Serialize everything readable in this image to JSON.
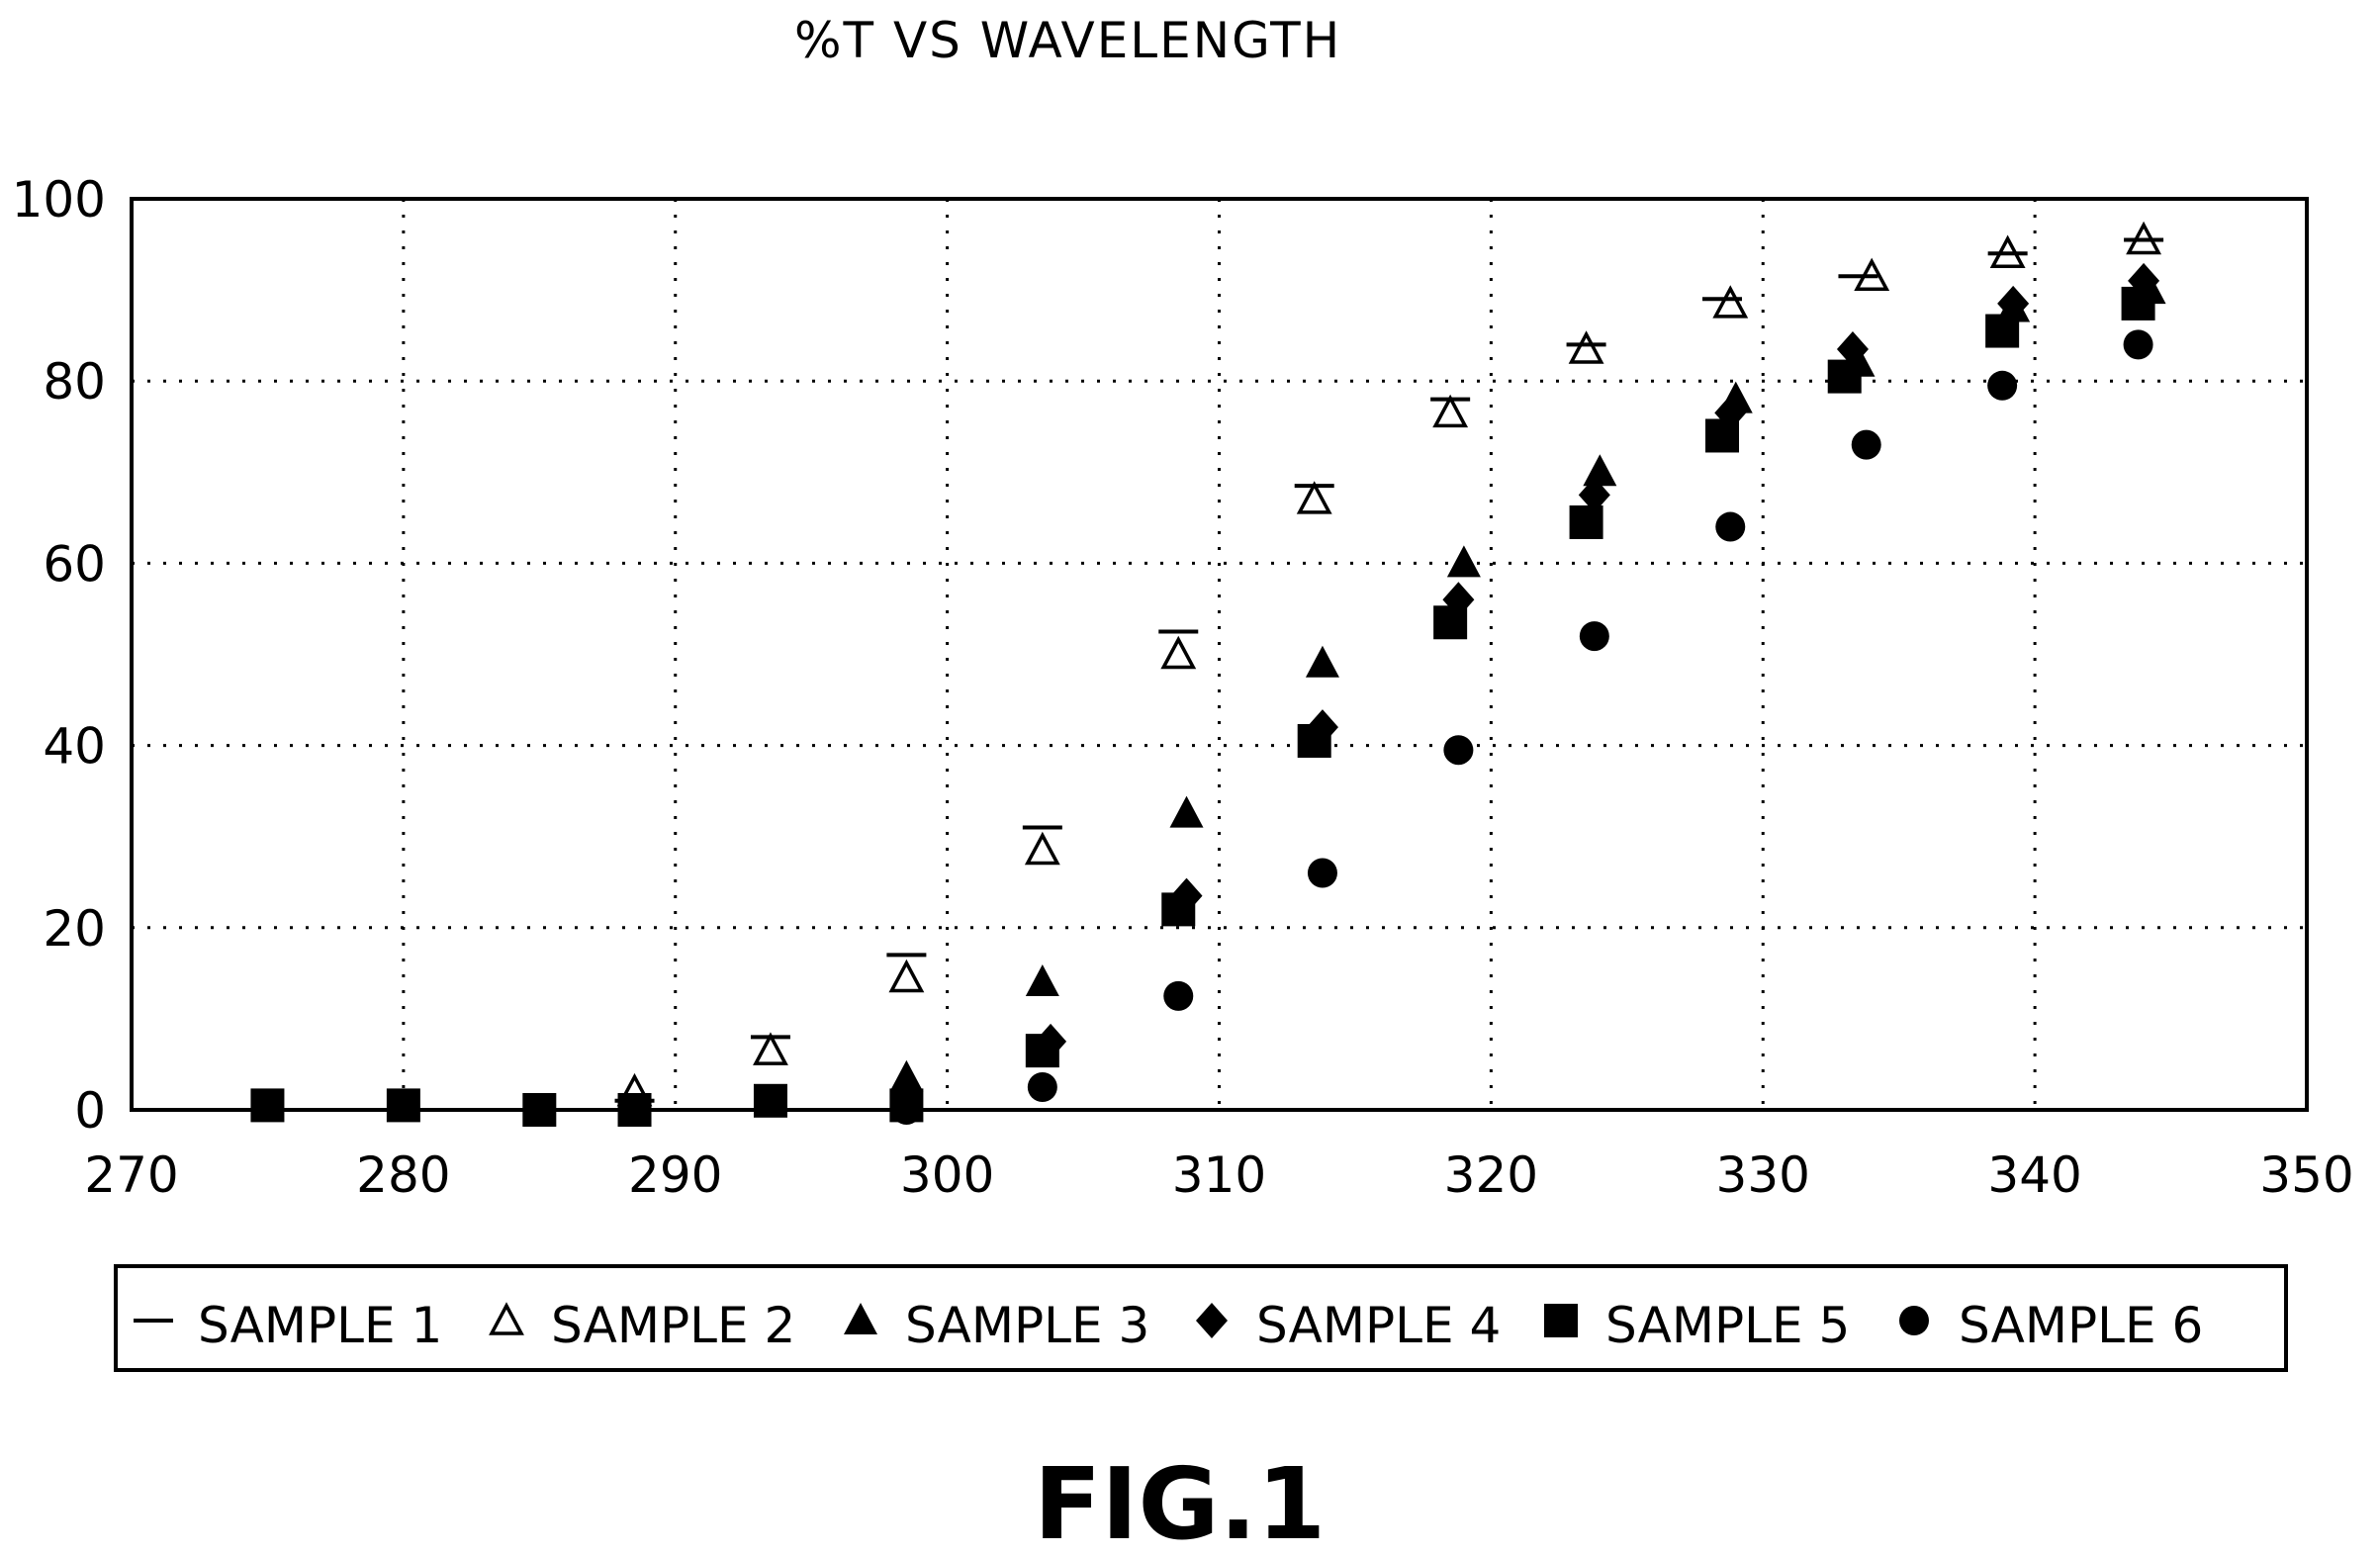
{
  "chart_data": {
    "type": "scatter",
    "title": "%T VS WAVELENGTH",
    "xlabel": "",
    "ylabel": "",
    "xlim": [
      270,
      350
    ],
    "ylim": [
      0,
      100
    ],
    "x_ticks": [
      "270",
      "280",
      "290",
      "300",
      "310",
      "320",
      "330",
      "340",
      "350"
    ],
    "y_ticks": [
      "0",
      "20",
      "40",
      "60",
      "80",
      "100"
    ],
    "grid": "dotted",
    "legend_position": "bottom",
    "series": [
      {
        "name": "SAMPLE 1",
        "marker": "dash",
        "points": [
          [
            275,
            0
          ],
          [
            280,
            0
          ],
          [
            285,
            0
          ],
          [
            288.5,
            1
          ],
          [
            293.5,
            8
          ],
          [
            298.5,
            17
          ],
          [
            303.5,
            31
          ],
          [
            308.5,
            52.5
          ],
          [
            313.5,
            68.5
          ],
          [
            318.5,
            78
          ],
          [
            323.5,
            84
          ],
          [
            328.5,
            89
          ],
          [
            333.5,
            91.5
          ],
          [
            339,
            94
          ],
          [
            344,
            95.5
          ]
        ]
      },
      {
        "name": "SAMPLE 2",
        "marker": "triangle-open",
        "points": [
          [
            288.5,
            2
          ],
          [
            293.5,
            6.5
          ],
          [
            298.5,
            14.5
          ],
          [
            303.5,
            28.5
          ],
          [
            308.5,
            50
          ],
          [
            313.5,
            67
          ],
          [
            318.5,
            76.5
          ],
          [
            323.5,
            83.5
          ],
          [
            328.8,
            88.5
          ],
          [
            334,
            91.5
          ],
          [
            339,
            94
          ],
          [
            344,
            95.5
          ]
        ]
      },
      {
        "name": "SAMPLE 3",
        "marker": "triangle-filled",
        "points": [
          [
            298.5,
            3.5
          ],
          [
            303.5,
            14
          ],
          [
            308.8,
            32.5
          ],
          [
            313.8,
            49
          ],
          [
            319,
            60
          ],
          [
            324,
            70
          ],
          [
            329,
            78
          ],
          [
            333.5,
            82
          ],
          [
            339.2,
            88
          ],
          [
            344.2,
            90
          ]
        ]
      },
      {
        "name": "SAMPLE 4",
        "marker": "diamond",
        "points": [
          [
            303.8,
            7.5
          ],
          [
            308.8,
            23.5
          ],
          [
            313.8,
            42
          ],
          [
            318.8,
            56
          ],
          [
            323.8,
            67.5
          ],
          [
            328.8,
            76.5
          ],
          [
            333.3,
            83.5
          ],
          [
            339.2,
            88.5
          ],
          [
            344,
            91
          ]
        ]
      },
      {
        "name": "SAMPLE 5",
        "marker": "square",
        "points": [
          [
            275,
            0.5
          ],
          [
            280,
            0.5
          ],
          [
            285,
            0
          ],
          [
            288.5,
            0
          ],
          [
            293.5,
            1
          ],
          [
            298.5,
            0.5
          ],
          [
            303.5,
            6.5
          ],
          [
            308.5,
            22
          ],
          [
            313.5,
            40.5
          ],
          [
            318.5,
            53.5
          ],
          [
            323.5,
            64.5
          ],
          [
            328.5,
            74
          ],
          [
            333,
            80.5
          ],
          [
            338.8,
            85.5
          ],
          [
            343.8,
            88.5
          ]
        ]
      },
      {
        "name": "SAMPLE 6",
        "marker": "circle",
        "points": [
          [
            298.5,
            0
          ],
          [
            303.5,
            2.5
          ],
          [
            308.5,
            12.5
          ],
          [
            313.8,
            26
          ],
          [
            318.8,
            39.5
          ],
          [
            323.8,
            52
          ],
          [
            328.8,
            64
          ],
          [
            333.8,
            73
          ],
          [
            338.8,
            79.5
          ],
          [
            343.8,
            84
          ]
        ]
      }
    ]
  },
  "figure_label": "FIG.1",
  "colors": {
    "ink": "#000000",
    "background": "#ffffff"
  }
}
